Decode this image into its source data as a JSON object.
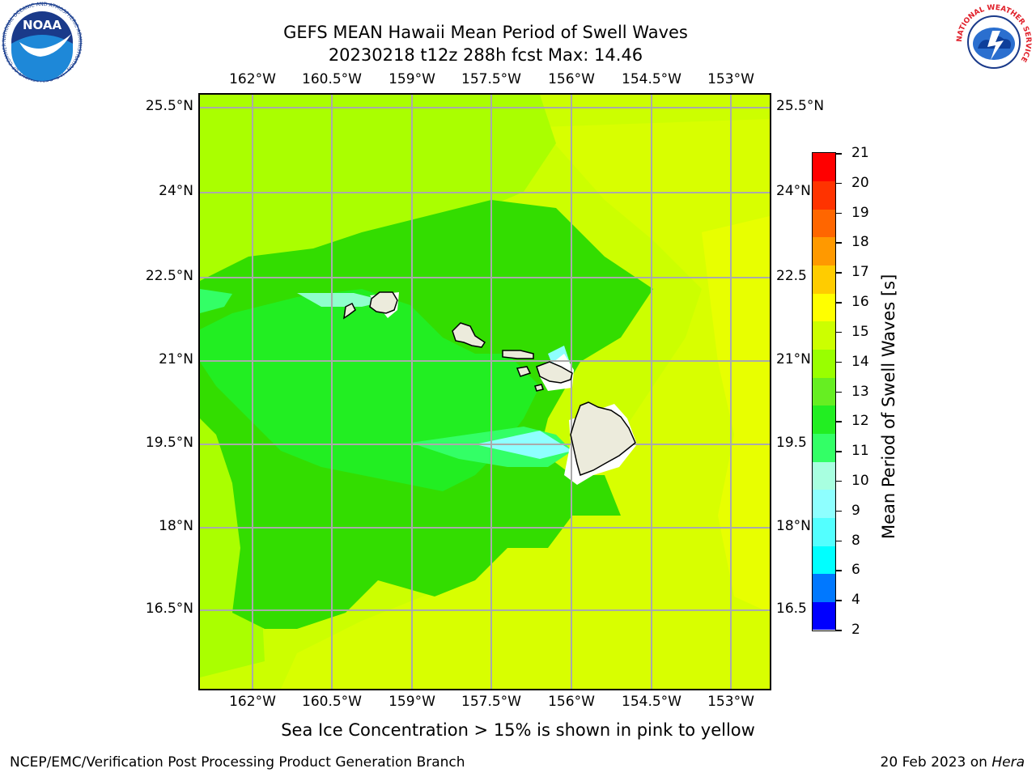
{
  "title": {
    "line1": "GEFS MEAN Hawaii Mean Period of Swell Waves",
    "line2": "20230218 t12z 288h fcst   Max: 14.46"
  },
  "map": {
    "lon_ticks": [
      "162°W",
      "160.5°W",
      "159°W",
      "157.5°W",
      "156°W",
      "154.5°W",
      "153°W"
    ],
    "lat_ticks": [
      "25.5°N",
      "24°N",
      "22.5°N",
      "21°N",
      "19.5°N",
      "18°N",
      "16.5°N"
    ],
    "lat_ticks_right": [
      "25.5°N",
      "24°N",
      "22.5",
      "21°N",
      "19.5",
      "18°N",
      "16.5"
    ],
    "lon_range": [
      -163,
      -152.2
    ],
    "lat_range": [
      15,
      25.8
    ],
    "grid": true,
    "islands": [
      "Niihau",
      "Kauai",
      "Oahu",
      "Molokai",
      "Lanai",
      "Kahoolawe",
      "Maui",
      "Hawaii"
    ]
  },
  "colorbar": {
    "label": "Mean Period of Swell Waves [s]",
    "ticks": [
      "21",
      "20",
      "19",
      "18",
      "17",
      "16",
      "15",
      "14",
      "13",
      "12",
      "11",
      "10",
      "9",
      "8",
      "6",
      "4",
      "2"
    ],
    "colors": [
      "#0000ff",
      "#0078ff",
      "#00ffff",
      "#53ffff",
      "#8effff",
      "#a8ffe0",
      "#33ff66",
      "#22ee22",
      "#66ee22",
      "#99ff00",
      "#ccff00",
      "#ffff00",
      "#ffcc00",
      "#ff9900",
      "#ff6600",
      "#ff3300",
      "#ff0000"
    ]
  },
  "caption": "Sea Ice Concentration > 15% is shown in pink to yellow",
  "footer": {
    "left": "NCEP/EMC/Verification Post Processing Product Generation Branch",
    "right_prefix": "20 Feb 2023 on ",
    "right_host": "Hera"
  },
  "logos": {
    "noaa": "NOAA",
    "noaa_ring": "NATIONAL OCEANIC AND ATMOSPHERIC ADMINISTRATION · U.S. DEPARTMENT OF COMMERCE",
    "nws_ring": "NATIONAL WEATHER SERVICE"
  }
}
